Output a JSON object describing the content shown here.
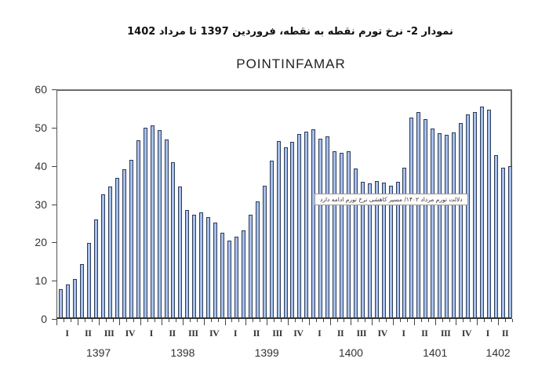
{
  "figure": {
    "caption": "نمودار 2- نرخ تورم نقطه به نقطه، فروردین 1397 تا مرداد 1402",
    "annotation": "دلالت تورم مرداد ۱۴۰۲/ مسیر کاهشی نرخ تورم ادامه دارد"
  },
  "chart_data": {
    "type": "bar",
    "title": "POINTINFAMAR",
    "xlabel": "",
    "ylabel": "",
    "ylim": [
      0,
      60
    ],
    "yticks": [
      0,
      10,
      20,
      30,
      40,
      50,
      60
    ],
    "grid": false,
    "legend": null,
    "bar_color": "#a6c0ec",
    "bar_edge_color": "#2d3a55",
    "quarter_labels": [
      "I",
      "II",
      "III",
      "IV"
    ],
    "years": [
      "1397",
      "1398",
      "1399",
      "1400",
      "1401",
      "1402"
    ],
    "categories": [
      "1397-01",
      "1397-02",
      "1397-03",
      "1397-04",
      "1397-05",
      "1397-06",
      "1397-07",
      "1397-08",
      "1397-09",
      "1397-10",
      "1397-11",
      "1397-12",
      "1398-01",
      "1398-02",
      "1398-03",
      "1398-04",
      "1398-05",
      "1398-06",
      "1398-07",
      "1398-08",
      "1398-09",
      "1398-10",
      "1398-11",
      "1398-12",
      "1399-01",
      "1399-02",
      "1399-03",
      "1399-04",
      "1399-05",
      "1399-06",
      "1399-07",
      "1399-08",
      "1399-09",
      "1399-10",
      "1399-11",
      "1399-12",
      "1400-01",
      "1400-02",
      "1400-03",
      "1400-04",
      "1400-05",
      "1400-06",
      "1400-07",
      "1400-08",
      "1400-09",
      "1400-10",
      "1400-11",
      "1400-12",
      "1401-01",
      "1401-02",
      "1401-03",
      "1401-04",
      "1401-05",
      "1401-06",
      "1401-07",
      "1401-08",
      "1401-09",
      "1401-10",
      "1401-11",
      "1401-12",
      "1402-01",
      "1402-02",
      "1402-03",
      "1402-04",
      "1402-05"
    ],
    "values": [
      7.5,
      8.6,
      10.1,
      14.1,
      19.5,
      25.8,
      32.4,
      34.5,
      36.8,
      39.0,
      41.5,
      46.6,
      50.0,
      50.6,
      49.2,
      46.9,
      40.8,
      34.5,
      28.3,
      27.0,
      27.6,
      26.4,
      25.0,
      22.2,
      20.3,
      21.2,
      22.8,
      27.0,
      30.6,
      34.6,
      41.3,
      46.4,
      44.7,
      46.1,
      48.3,
      48.8,
      49.5,
      47.1,
      47.7,
      43.7,
      43.4,
      43.7,
      39.1,
      35.6,
      35.2,
      35.9,
      35.5,
      34.7,
      35.6,
      39.4,
      52.5,
      54.0,
      52.2,
      49.6,
      48.5,
      48.1,
      48.6,
      51.2,
      53.4,
      54.0,
      55.5,
      54.6,
      42.6,
      39.4,
      39.8
    ]
  }
}
